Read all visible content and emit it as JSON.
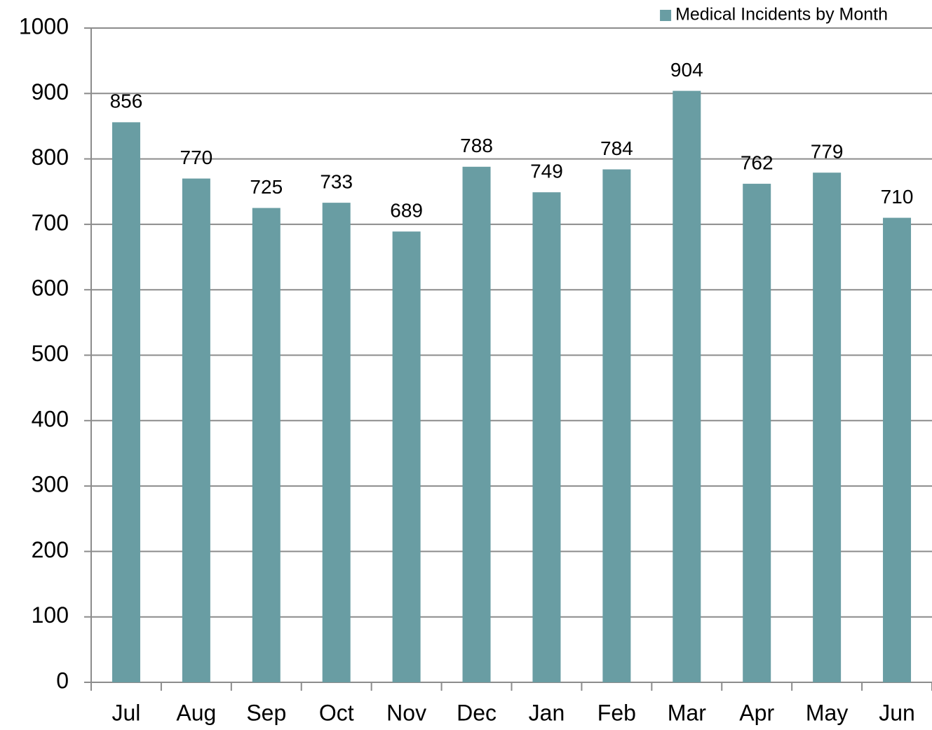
{
  "chart_data": {
    "type": "bar",
    "categories": [
      "Jul",
      "Aug",
      "Sep",
      "Oct",
      "Nov",
      "Dec",
      "Jan",
      "Feb",
      "Mar",
      "Apr",
      "May",
      "Jun"
    ],
    "series": [
      {
        "name": "Medical Incidents by Month",
        "color": "#699da3",
        "values": [
          856,
          770,
          725,
          733,
          689,
          788,
          749,
          784,
          904,
          762,
          779,
          710
        ]
      }
    ],
    "ylim": [
      0,
      1000
    ],
    "yticks": [
      0,
      100,
      200,
      300,
      400,
      500,
      600,
      700,
      800,
      900,
      1000
    ],
    "grid": true,
    "legend": "top-right"
  }
}
